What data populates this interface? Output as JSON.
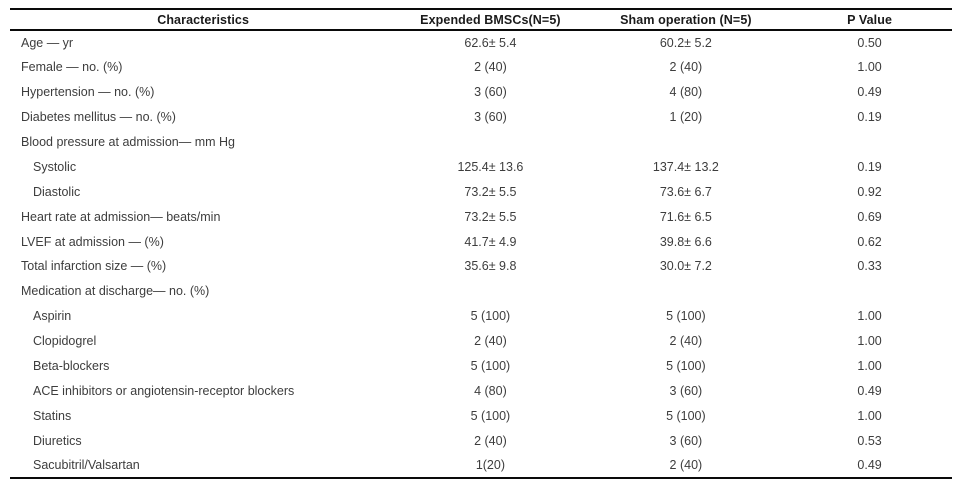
{
  "table": {
    "columns": [
      "Characteristics",
      "Expended BMSCs(N=5)",
      "Sham operation (N=5)",
      "P Value"
    ],
    "rows": [
      {
        "label": "Age — yr",
        "indent": false,
        "bmsc": "62.6± 5.4",
        "sham": "60.2± 5.2",
        "p": "0.50"
      },
      {
        "label": "Female — no. (%)",
        "indent": false,
        "bmsc": "2 (40)",
        "sham": "2 (40)",
        "p": "1.00"
      },
      {
        "label": "Hypertension — no. (%)",
        "indent": false,
        "bmsc": "3 (60)",
        "sham": "4 (80)",
        "p": "0.49"
      },
      {
        "label": "Diabetes mellitus — no. (%)",
        "indent": false,
        "bmsc": "3 (60)",
        "sham": "1 (20)",
        "p": "0.19"
      },
      {
        "label": "Blood pressure at admission— mm Hg",
        "indent": false,
        "section": true,
        "bmsc": "",
        "sham": "",
        "p": ""
      },
      {
        "label": "Systolic",
        "indent": true,
        "bmsc": "125.4± 13.6",
        "sham": "137.4± 13.2",
        "p": "0.19"
      },
      {
        "label": "Diastolic",
        "indent": true,
        "bmsc": "73.2± 5.5",
        "sham": "73.6± 6.7",
        "p": "0.92"
      },
      {
        "label": "Heart rate at admission— beats/min",
        "indent": false,
        "bmsc": "73.2± 5.5",
        "sham": "71.6± 6.5",
        "p": "0.69"
      },
      {
        "label": "LVEF at admission — (%)",
        "indent": false,
        "bmsc": "41.7± 4.9",
        "sham": "39.8± 6.6",
        "p": "0.62"
      },
      {
        "label": "Total infarction size — (%)",
        "indent": false,
        "bmsc": "35.6± 9.8",
        "sham": "30.0± 7.2",
        "p": "0.33"
      },
      {
        "label": "Medication at discharge— no. (%)",
        "indent": false,
        "section": true,
        "bmsc": "",
        "sham": "",
        "p": ""
      },
      {
        "label": "Aspirin",
        "indent": true,
        "bmsc": "5 (100)",
        "sham": "5 (100)",
        "p": "1.00"
      },
      {
        "label": "Clopidogrel",
        "indent": true,
        "bmsc": "2 (40)",
        "sham": "2 (40)",
        "p": "1.00"
      },
      {
        "label": "Beta-blockers",
        "indent": true,
        "bmsc": "5 (100)",
        "sham": "5 (100)",
        "p": "1.00"
      },
      {
        "label": "ACE inhibitors or angiotensin-receptor blockers",
        "indent": true,
        "bmsc": "4 (80)",
        "sham": "3 (60)",
        "p": "0.49"
      },
      {
        "label": "Statins",
        "indent": true,
        "bmsc": "5 (100)",
        "sham": "5 (100)",
        "p": "1.00"
      },
      {
        "label": "Diuretics",
        "indent": true,
        "bmsc": "2 (40)",
        "sham": "3 (60)",
        "p": "0.53"
      },
      {
        "label": "Sacubitril/Valsartan",
        "indent": true,
        "bmsc": "1(20)",
        "sham": "2 (40)",
        "p": "0.49"
      }
    ]
  },
  "chart_data": {
    "type": "table",
    "title": "Baseline characteristics: Expended BMSCs vs Sham operation",
    "columns": [
      "Characteristics",
      "Expended BMSCs(N=5)",
      "Sham operation (N=5)",
      "P Value"
    ]
  }
}
